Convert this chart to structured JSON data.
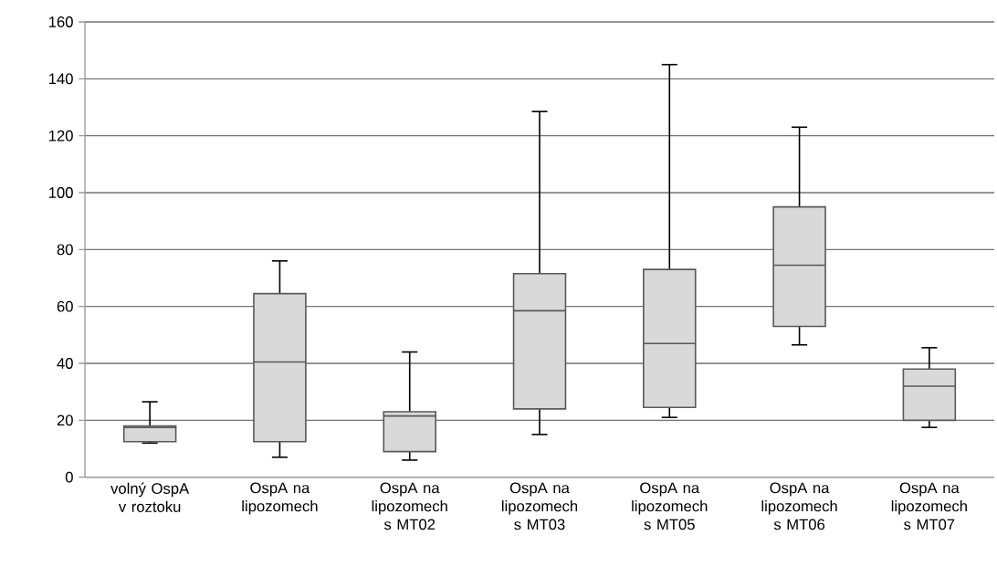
{
  "chart_data": {
    "type": "box",
    "categories": [
      "volný OspA v roztoku",
      "OspA na lipozomech",
      "OspA na lipozomech s MT02",
      "OspA na lipozomech s MT03",
      "OspA na lipozomech s MT05",
      "OspA na lipozomech s MT06",
      "OspA na lipozomech s MT07"
    ],
    "boxes": [
      {
        "low": 12,
        "q1": 12.5,
        "median": 17.5,
        "q3": 18,
        "high": 26.5
      },
      {
        "low": 7,
        "q1": 12.5,
        "median": 40.5,
        "q3": 64.5,
        "high": 76
      },
      {
        "low": 6,
        "q1": 9,
        "median": 21.5,
        "q3": 23,
        "high": 44
      },
      {
        "low": 15,
        "q1": 24,
        "median": 58.5,
        "q3": 71.5,
        "high": 128.5
      },
      {
        "low": 21,
        "q1": 24.5,
        "median": 47,
        "q3": 73,
        "high": 145
      },
      {
        "low": 46.5,
        "q1": 53,
        "median": 74.5,
        "q3": 95,
        "high": 123
      },
      {
        "low": 17.5,
        "q1": 20,
        "median": 32,
        "q3": 38,
        "high": 45.5
      }
    ],
    "color": "#d9d9d9",
    "ylim": [
      0,
      160
    ],
    "yticks": [
      0,
      20,
      40,
      60,
      80,
      100,
      120,
      140,
      160
    ],
    "grid": "y"
  }
}
